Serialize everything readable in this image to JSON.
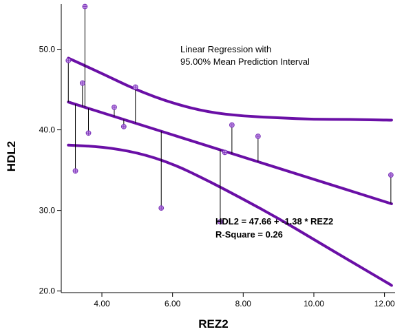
{
  "chart_data": {
    "type": "scatter",
    "xlabel": "REZ2",
    "ylabel": "HDL2",
    "xlim": [
      2.85,
      12.3
    ],
    "ylim": [
      19.8,
      55.6
    ],
    "x_ticks": [
      4.0,
      6.0,
      8.0,
      10.0,
      12.0
    ],
    "x_tick_labels": [
      "4.00",
      "6.00",
      "8.00",
      "10.00",
      "12.00"
    ],
    "y_ticks": [
      20.0,
      30.0,
      40.0,
      50.0
    ],
    "y_tick_labels": [
      "20.0",
      "30.0",
      "40.0",
      "50.0"
    ],
    "annotation_lines": [
      "Linear Regression with",
      "95.00% Mean Prediction Interval"
    ],
    "equation": "HDL2 = 47.66 + -1.38 * REZ2",
    "r_square": "R-Square = 0.26",
    "points": [
      {
        "x": 3.05,
        "y": 48.6
      },
      {
        "x": 3.25,
        "y": 34.9
      },
      {
        "x": 3.45,
        "y": 45.8
      },
      {
        "x": 3.52,
        "y": 55.3
      },
      {
        "x": 3.62,
        "y": 39.6
      },
      {
        "x": 4.35,
        "y": 42.8
      },
      {
        "x": 4.62,
        "y": 40.4
      },
      {
        "x": 4.95,
        "y": 45.3
      },
      {
        "x": 5.68,
        "y": 30.3
      },
      {
        "x": 7.35,
        "y": 28.6
      },
      {
        "x": 7.48,
        "y": 37.2
      },
      {
        "x": 7.68,
        "y": 40.6
      },
      {
        "x": 8.42,
        "y": 39.2
      },
      {
        "x": 12.18,
        "y": 34.4
      }
    ],
    "regression": {
      "intercept": 47.66,
      "slope": -1.38
    },
    "upper_band": [
      [
        3.05,
        48.9
      ],
      [
        4.0,
        47.0
      ],
      [
        5.0,
        44.9
      ],
      [
        6.0,
        43.3
      ],
      [
        7.0,
        42.2
      ],
      [
        8.0,
        41.7
      ],
      [
        9.0,
        41.5
      ],
      [
        10.0,
        41.3
      ],
      [
        11.0,
        41.3
      ],
      [
        12.2,
        41.2
      ]
    ],
    "lower_band": [
      [
        3.05,
        38.1
      ],
      [
        4.0,
        37.9
      ],
      [
        5.0,
        37.2
      ],
      [
        6.0,
        35.8
      ],
      [
        7.0,
        33.7
      ],
      [
        8.0,
        31.4
      ],
      [
        9.0,
        29.0
      ],
      [
        10.0,
        26.4
      ],
      [
        11.0,
        23.8
      ],
      [
        12.2,
        20.7
      ]
    ],
    "colors": {
      "line": "#6a0fa6",
      "point_fill": "#c79be8",
      "point_edge": "#7a32b8",
      "drop_line": "#000000"
    }
  }
}
